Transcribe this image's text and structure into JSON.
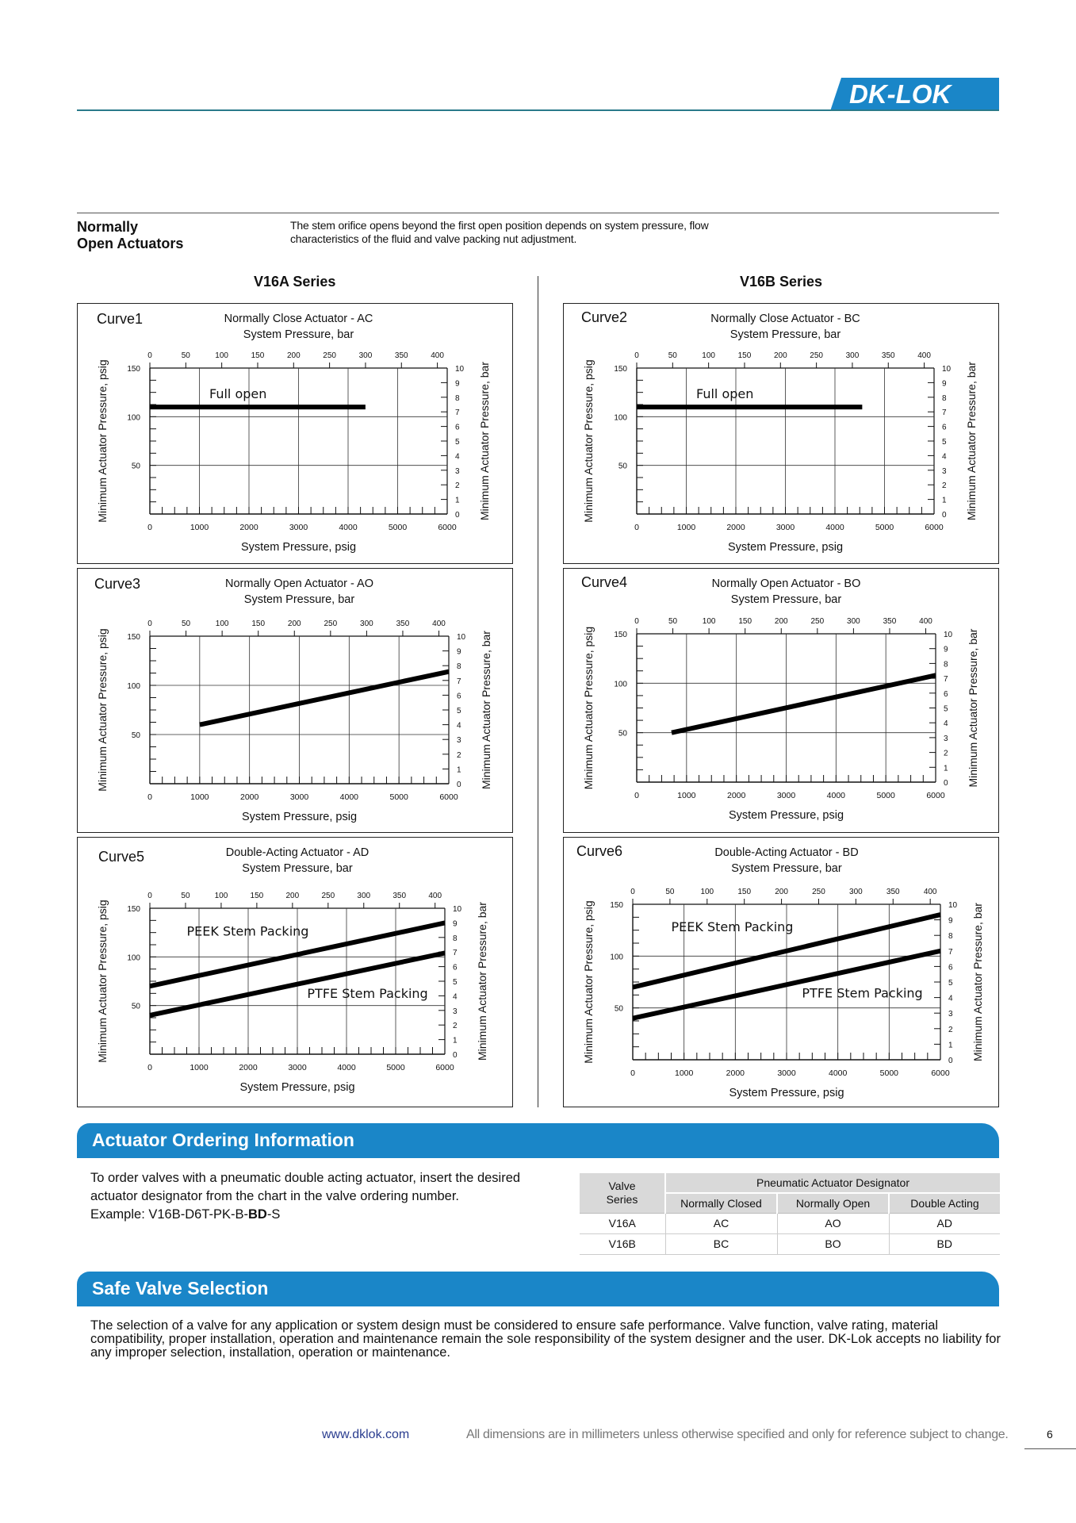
{
  "brand": {
    "logo_text": "DK-LOK",
    "color": "#1a86c8"
  },
  "section": {
    "title": "Normally\nOpen Actuators",
    "description": "The stem orifice opens beyond the first open position depends on system pressure, flow characteristics of the fluid and valve packing nut adjustment."
  },
  "series": {
    "left": "V16A Series",
    "right": "V16B Series"
  },
  "chart_data": [
    {
      "id": "curve1",
      "curve_label": "Curve1",
      "type": "line",
      "title": "Normally Close Actuator - AC",
      "top_axis_label": "System Pressure, bar",
      "xlabel": "System Pressure, psig",
      "ylabel": "Minimum Actuator Pressure, psig",
      "y2label": "Minimum Actuator Pressure, bar",
      "xlim": [
        0,
        6000
      ],
      "ylim": [
        0,
        150
      ],
      "x_ticks": [
        0,
        1000,
        2000,
        3000,
        4000,
        5000,
        6000
      ],
      "y_ticks": [
        50,
        100,
        150
      ],
      "top_ticks": [
        0,
        50,
        100,
        150,
        200,
        250,
        300,
        350,
        400
      ],
      "right_ticks": [
        0,
        1,
        2,
        3,
        4,
        5,
        6,
        7,
        8,
        9,
        10
      ],
      "series": [
        {
          "name": "Full open",
          "x": [
            0,
            4350
          ],
          "y": [
            110,
            110
          ]
        }
      ],
      "annotations": [
        {
          "text": "Full open",
          "x": 1200,
          "y": 119
        }
      ]
    },
    {
      "id": "curve2",
      "curve_label": "Curve2",
      "type": "line",
      "title": "Normally Close Actuator - BC",
      "top_axis_label": "System Pressure, bar",
      "xlabel": "System Pressure, psig",
      "ylabel": "Minimum Actuator Pressure, psig",
      "y2label": "Minimum Actuator Pressure, bar",
      "xlim": [
        0,
        6000
      ],
      "ylim": [
        0,
        150
      ],
      "x_ticks": [
        0,
        1000,
        2000,
        3000,
        4000,
        5000,
        6000
      ],
      "y_ticks": [
        50,
        100,
        150
      ],
      "top_ticks": [
        0,
        50,
        100,
        150,
        200,
        250,
        300,
        350,
        400
      ],
      "right_ticks": [
        0,
        1,
        2,
        3,
        4,
        5,
        6,
        7,
        8,
        9,
        10
      ],
      "series": [
        {
          "name": "Full open",
          "x": [
            0,
            4550
          ],
          "y": [
            110,
            110
          ]
        }
      ],
      "annotations": [
        {
          "text": "Full open",
          "x": 1200,
          "y": 119
        }
      ]
    },
    {
      "id": "curve3",
      "curve_label": "Curve3",
      "type": "line",
      "title": "Normally Open Actuator - AO",
      "top_axis_label": "System Pressure, bar",
      "xlabel": "System Pressure, psig",
      "ylabel": "Minimum Actuator Pressure, psig",
      "y2label": "Minimum Actuator Pressure, bar",
      "xlim": [
        0,
        6000
      ],
      "ylim": [
        0,
        150
      ],
      "x_ticks": [
        0,
        1000,
        2000,
        3000,
        4000,
        5000,
        6000
      ],
      "y_ticks": [
        50,
        100,
        150
      ],
      "top_ticks": [
        0,
        50,
        100,
        150,
        200,
        250,
        300,
        350,
        400
      ],
      "right_ticks": [
        0,
        1,
        2,
        3,
        4,
        5,
        6,
        7,
        8,
        9,
        10
      ],
      "series": [
        {
          "name": "",
          "x": [
            1000,
            6000
          ],
          "y": [
            60,
            114
          ]
        }
      ],
      "annotations": []
    },
    {
      "id": "curve4",
      "curve_label": "Curve4",
      "type": "line",
      "title": "Normally Open Actuator - BO",
      "top_axis_label": "System Pressure, bar",
      "xlabel": "System Pressure, psig",
      "ylabel": "Minimum Actuator Pressure, psig",
      "y2label": "Minimum Actuator Pressure, bar",
      "xlim": [
        0,
        6000
      ],
      "ylim": [
        0,
        150
      ],
      "x_ticks": [
        0,
        1000,
        2000,
        3000,
        4000,
        5000,
        6000
      ],
      "y_ticks": [
        50,
        100,
        150
      ],
      "top_ticks": [
        0,
        50,
        100,
        150,
        200,
        250,
        300,
        350,
        400
      ],
      "right_ticks": [
        0,
        1,
        2,
        3,
        4,
        5,
        6,
        7,
        8,
        9,
        10
      ],
      "series": [
        {
          "name": "",
          "x": [
            700,
            6000
          ],
          "y": [
            50,
            108
          ]
        }
      ],
      "annotations": []
    },
    {
      "id": "curve5",
      "curve_label": "Curve5",
      "type": "line",
      "title": "Double-Acting Actuator - AD",
      "top_axis_label": "System Pressure, bar",
      "xlabel": "System Pressure, psig",
      "ylabel": "Minimum Actuator Pressure, psig",
      "y2label": "Minimum Actuator Pressure, bar",
      "xlim": [
        0,
        6000
      ],
      "ylim": [
        0,
        150
      ],
      "x_ticks": [
        0,
        1000,
        2000,
        3000,
        4000,
        5000,
        6000
      ],
      "y_ticks": [
        50,
        100,
        150
      ],
      "top_ticks": [
        0,
        50,
        100,
        150,
        200,
        250,
        300,
        350,
        400
      ],
      "right_ticks": [
        0,
        1,
        2,
        3,
        4,
        5,
        6,
        7,
        8,
        9,
        10
      ],
      "series": [
        {
          "name": "PEEK Stem Packing",
          "x": [
            0,
            6000
          ],
          "y": [
            70,
            135
          ]
        },
        {
          "name": "PTFE Stem Packing",
          "x": [
            0,
            6000
          ],
          "y": [
            40,
            104
          ]
        }
      ],
      "annotations": [
        {
          "text": "PEEK Stem Packing",
          "x": 750,
          "y": 122
        },
        {
          "text": "PTFE Stem Packing",
          "x": 3200,
          "y": 58
        }
      ]
    },
    {
      "id": "curve6",
      "curve_label": "Curve6",
      "type": "line",
      "title": "Double-Acting Actuator - BD",
      "top_axis_label": "System Pressure, bar",
      "xlabel": "System Pressure, psig",
      "ylabel": "Minimum Actuator Pressure, psig",
      "y2label": "Minimum Actuator Pressure, bar",
      "xlim": [
        0,
        6000
      ],
      "ylim": [
        0,
        150
      ],
      "x_ticks": [
        0,
        1000,
        2000,
        3000,
        4000,
        5000,
        6000
      ],
      "y_ticks": [
        50,
        100,
        150
      ],
      "top_ticks": [
        0,
        50,
        100,
        150,
        200,
        250,
        300,
        350,
        400
      ],
      "right_ticks": [
        0,
        1,
        2,
        3,
        4,
        5,
        6,
        7,
        8,
        9,
        10
      ],
      "series": [
        {
          "name": "PEEK Stem Packing",
          "x": [
            0,
            6000
          ],
          "y": [
            70,
            140
          ]
        },
        {
          "name": "PTFE Stem Packing",
          "x": [
            0,
            6000
          ],
          "y": [
            40,
            105
          ]
        }
      ],
      "annotations": [
        {
          "text": "PEEK Stem Packing",
          "x": 750,
          "y": 124
        },
        {
          "text": "PTFE Stem Packing",
          "x": 3300,
          "y": 60
        }
      ]
    }
  ],
  "ordering": {
    "title": "Actuator Ordering Information",
    "text": "To order valves with a pneumatic double acting actuator, insert the desired actuator designator from the chart in the valve ordering number.",
    "example_prefix": "Example: V16B-D6T-PK-B-",
    "example_bold": "BD",
    "example_suffix": "-S",
    "table": {
      "col0": "Valve Series",
      "group": "Pneumatic Actuator Designator",
      "headers": [
        "Normally Closed",
        "Normally Open",
        "Double Acting"
      ],
      "rows": [
        [
          "V16A",
          "AC",
          "AO",
          "AD"
        ],
        [
          "V16B",
          "BC",
          "BO",
          "BD"
        ]
      ]
    }
  },
  "safe": {
    "title": "Safe Valve Selection",
    "text": "The selection of a valve for any application or system design must be considered to ensure safe performance. Valve function, valve rating, material compatibility, proper installation, operation and maintenance remain the sole responsibility of the system designer and the user. DK-Lok accepts no liability for any improper selection, installation, operation or maintenance."
  },
  "footer": {
    "url": "www.dklok.com",
    "note": "All dimensions are in millimeters unless otherwise specified and only for reference subject to change.",
    "page": "6"
  }
}
